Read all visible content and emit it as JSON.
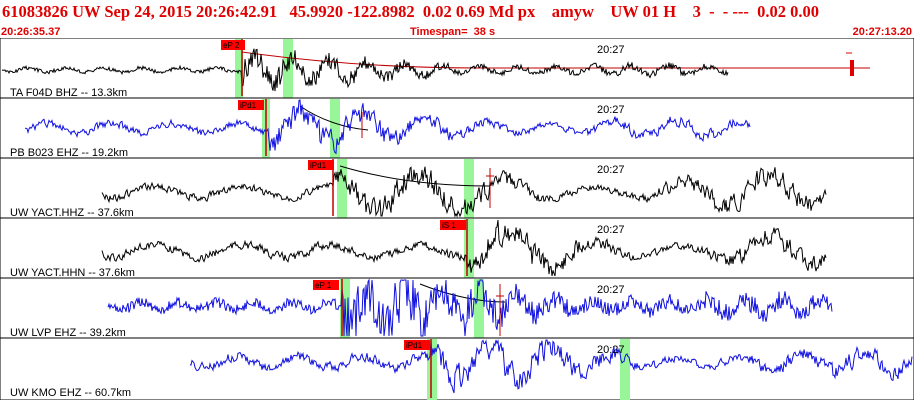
{
  "header": {
    "summary": "61083826 UW Sep 24, 2015 20:26:42.91   45.9920 -122.8982  0.02 0.69 Md px    amyw    UW 01 H    3  -  - ---  0.02 0.00",
    "start_time": "20:26:35.37",
    "timespan": "Timespan=  38 s",
    "end_time": "20:27:13.20"
  },
  "colors": {
    "accent": "#e00000",
    "pick_box": "#ff0000",
    "highlight": "#98f598",
    "trace_black": "#000000",
    "trace_blue": "#1010e0",
    "model_curve": "#c00000"
  },
  "panels": [
    {
      "label": "TA F04D BHZ -- 13.3km",
      "time_mark": "20:27",
      "pick": "eP 2",
      "color": "#000000"
    },
    {
      "label": "PB B023 EHZ -- 19.2km",
      "time_mark": "20:27",
      "pick": "iPd1",
      "color": "#1010e0"
    },
    {
      "label": "UW YACT.HHZ -- 37.6km",
      "time_mark": "20:27",
      "pick": "iPd1",
      "color": "#000000"
    },
    {
      "label": "UW YACT.HHN -- 37.6km",
      "time_mark": "20:27",
      "pick": "iS 1",
      "color": "#000000"
    },
    {
      "label": "UW LVP EHZ -- 39.2km",
      "time_mark": "20:27",
      "pick": "eP 1",
      "color": "#1010e0"
    },
    {
      "label": "UW KMO EHZ -- 60.7km",
      "time_mark": "20:27",
      "pick": "iPd1",
      "color": "#1010e0"
    }
  ]
}
